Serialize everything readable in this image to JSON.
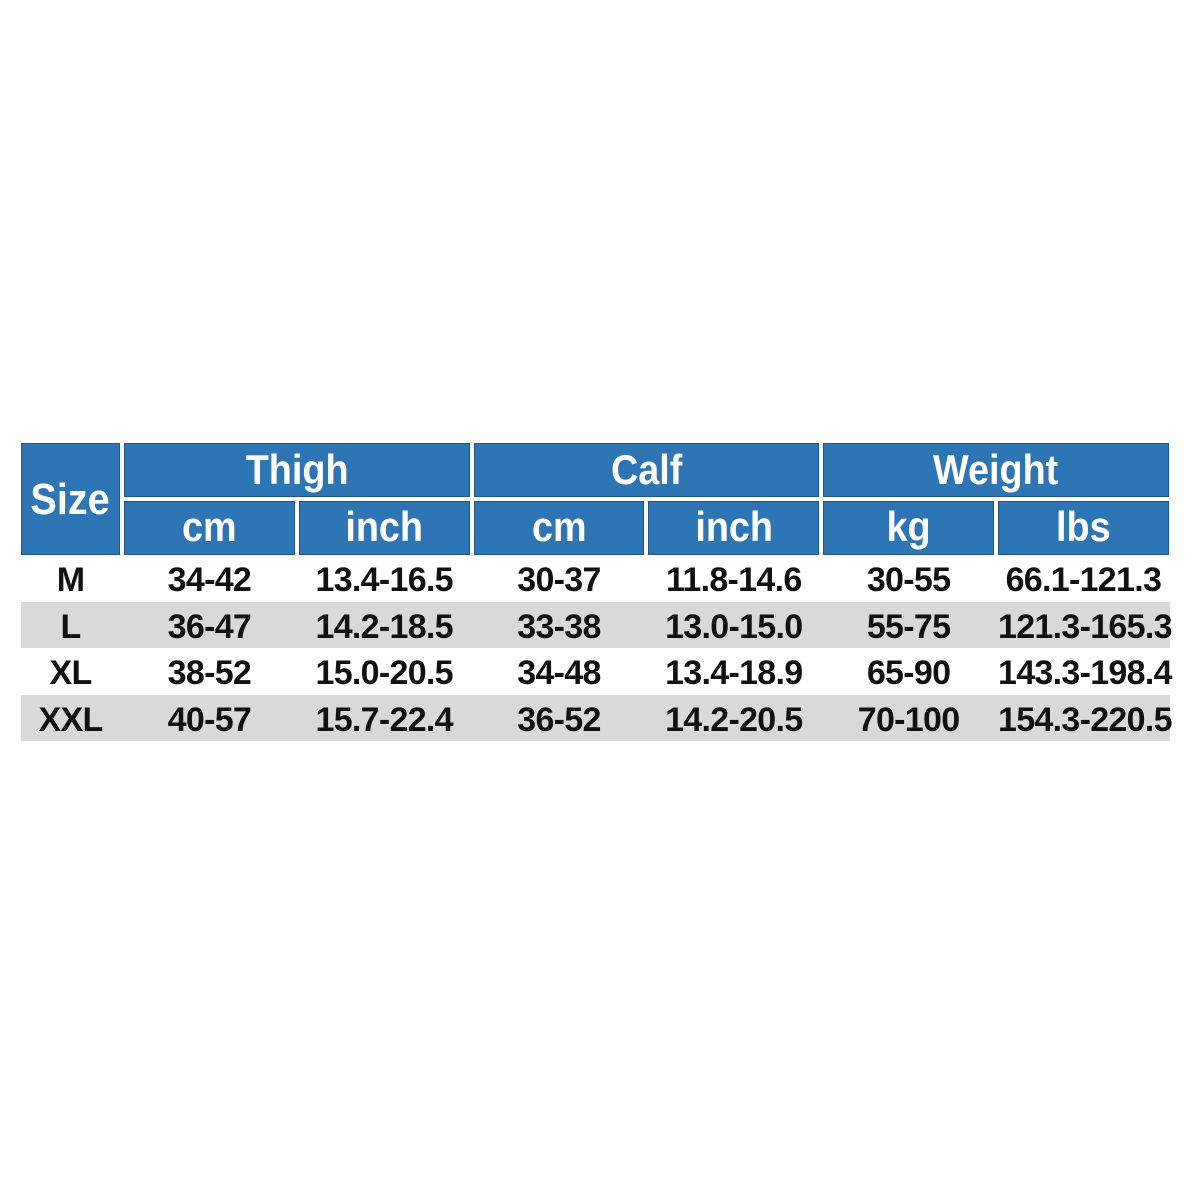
{
  "chart_data": {
    "type": "table",
    "header": {
      "corner": "Size",
      "groups": [
        {
          "label": "Thigh",
          "sub": [
            "cm",
            "inch"
          ]
        },
        {
          "label": "Calf",
          "sub": [
            "cm",
            "inch"
          ]
        },
        {
          "label": "Weight",
          "sub": [
            "kg",
            "lbs"
          ]
        }
      ]
    },
    "rows": [
      {
        "size": "M",
        "thigh_cm": "34-42",
        "thigh_inch": "13.4-16.5",
        "calf_cm": "30-37",
        "calf_inch": "11.8-14.6",
        "weight_kg": "30-55",
        "weight_lbs": "66.1-121.3"
      },
      {
        "size": "L",
        "thigh_cm": "36-47",
        "thigh_inch": "14.2-18.5",
        "calf_cm": "33-38",
        "calf_inch": "13.0-15.0",
        "weight_kg": "55-75",
        "weight_lbs": "121.3-165.3"
      },
      {
        "size": "XL",
        "thigh_cm": "38-52",
        "thigh_inch": "15.0-20.5",
        "calf_cm": "34-48",
        "calf_inch": "13.4-18.9",
        "weight_kg": "65-90",
        "weight_lbs": "143.3-198.4"
      },
      {
        "size": "XXL",
        "thigh_cm": "40-57",
        "thigh_inch": "15.7-22.4",
        "calf_cm": "36-52",
        "calf_inch": "14.2-20.5",
        "weight_kg": "70-100",
        "weight_lbs": "154.3-220.5"
      }
    ],
    "layout": {
      "legend": "none",
      "grid": "off",
      "header_style": "blue banner with white separators",
      "row_striping": "white and gray alternating"
    },
    "colors": {
      "header_bg": "#2E75B5",
      "header_border": "#26598C",
      "header_text": "#FFFFFF",
      "alt_row_bg": "#D9D9D9",
      "row_bg": "#FFFFFF",
      "data_text": "#111111",
      "page_bg": "#FFFFFF"
    }
  }
}
